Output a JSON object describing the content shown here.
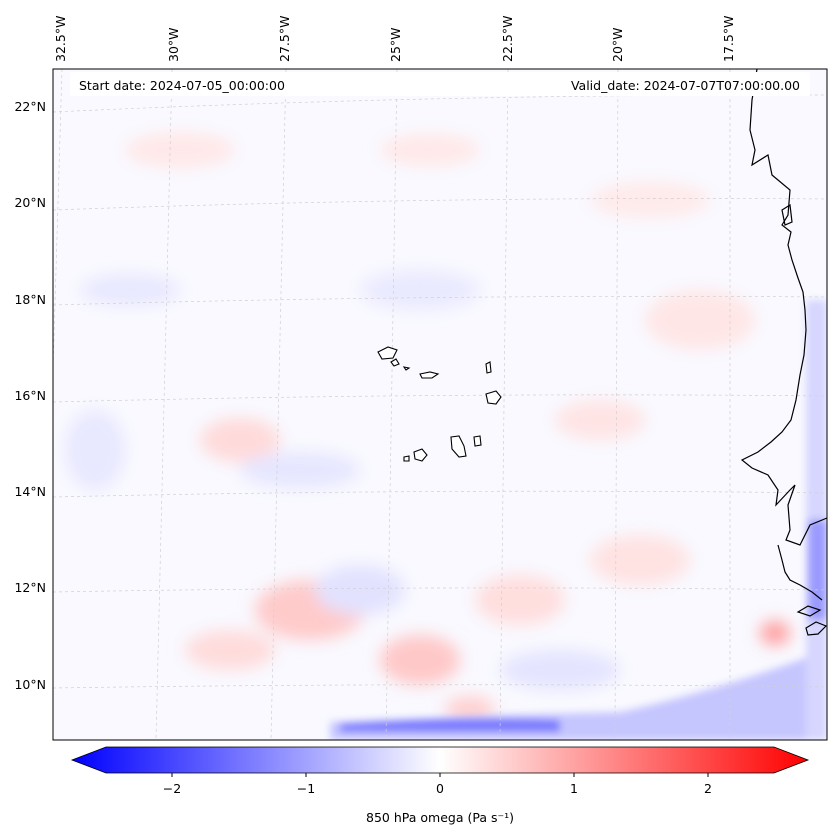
{
  "header": {
    "start_date": "Start date: 2024-07-05_00:00:00",
    "valid_date": "Valid_date: 2024-07-07T07:00:00.00"
  },
  "map": {
    "lon_labels": [
      "32.5°W",
      "30°W",
      "27.5°W",
      "25°W",
      "22.5°W",
      "20°W",
      "17.5°W"
    ],
    "lat_labels": [
      "22°N",
      "20°N",
      "18°N",
      "16°N",
      "14°N",
      "12°N",
      "10°N"
    ],
    "features": [
      "cape-verde-islands",
      "west-africa-coastline"
    ]
  },
  "colorbar": {
    "label": "850 hPa omega (Pa s⁻¹)",
    "ticks": [
      "−2",
      "−1",
      "0",
      "1",
      "2"
    ],
    "min": -2.6,
    "max": 2.6,
    "low_color": "#0000ff",
    "mid_color": "#ffffff",
    "high_color": "#ff0000"
  }
}
